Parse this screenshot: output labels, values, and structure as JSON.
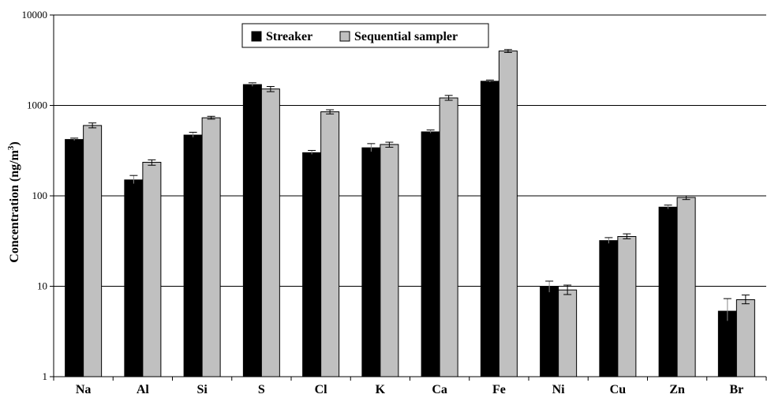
{
  "chart_data": {
    "type": "bar",
    "scale": "log",
    "ylabel": "Concentration (ng/m",
    "ylabel_sup": "3",
    "ylabel_close": ")",
    "ylim": [
      1,
      10000
    ],
    "yticks": [
      "1",
      "10",
      "100",
      "1000",
      "10000"
    ],
    "grid": true,
    "legend_position": "top-center",
    "categories": [
      "Na",
      "Al",
      "Si",
      "S",
      "Cl",
      "K",
      "Ca",
      "Fe",
      "Ni",
      "Cu",
      "Zn",
      "Br"
    ],
    "series": [
      {
        "name": "Streaker",
        "color": "#000000",
        "values": [
          420,
          150,
          470,
          1700,
          300,
          340,
          510,
          1850,
          9.8,
          32,
          75,
          5.3
        ],
        "err_low": [
          405,
          135,
          440,
          1610,
          285,
          305,
          490,
          1790,
          8.5,
          29.5,
          71,
          4.1
        ],
        "err_high": [
          435,
          168,
          505,
          1780,
          318,
          378,
          535,
          1910,
          11.4,
          34.5,
          79,
          7.3
        ]
      },
      {
        "name": "Sequential sampler",
        "color": "#c0c0c0",
        "values": [
          600,
          235,
          730,
          1520,
          850,
          370,
          1210,
          4000,
          9.1,
          35.5,
          96,
          7.1
        ],
        "err_low": [
          565,
          218,
          705,
          1420,
          805,
          345,
          1140,
          3850,
          8.1,
          33.5,
          91,
          6.4
        ],
        "err_high": [
          640,
          250,
          758,
          1620,
          895,
          392,
          1290,
          4150,
          10.3,
          38,
          100,
          8.0
        ]
      }
    ]
  }
}
